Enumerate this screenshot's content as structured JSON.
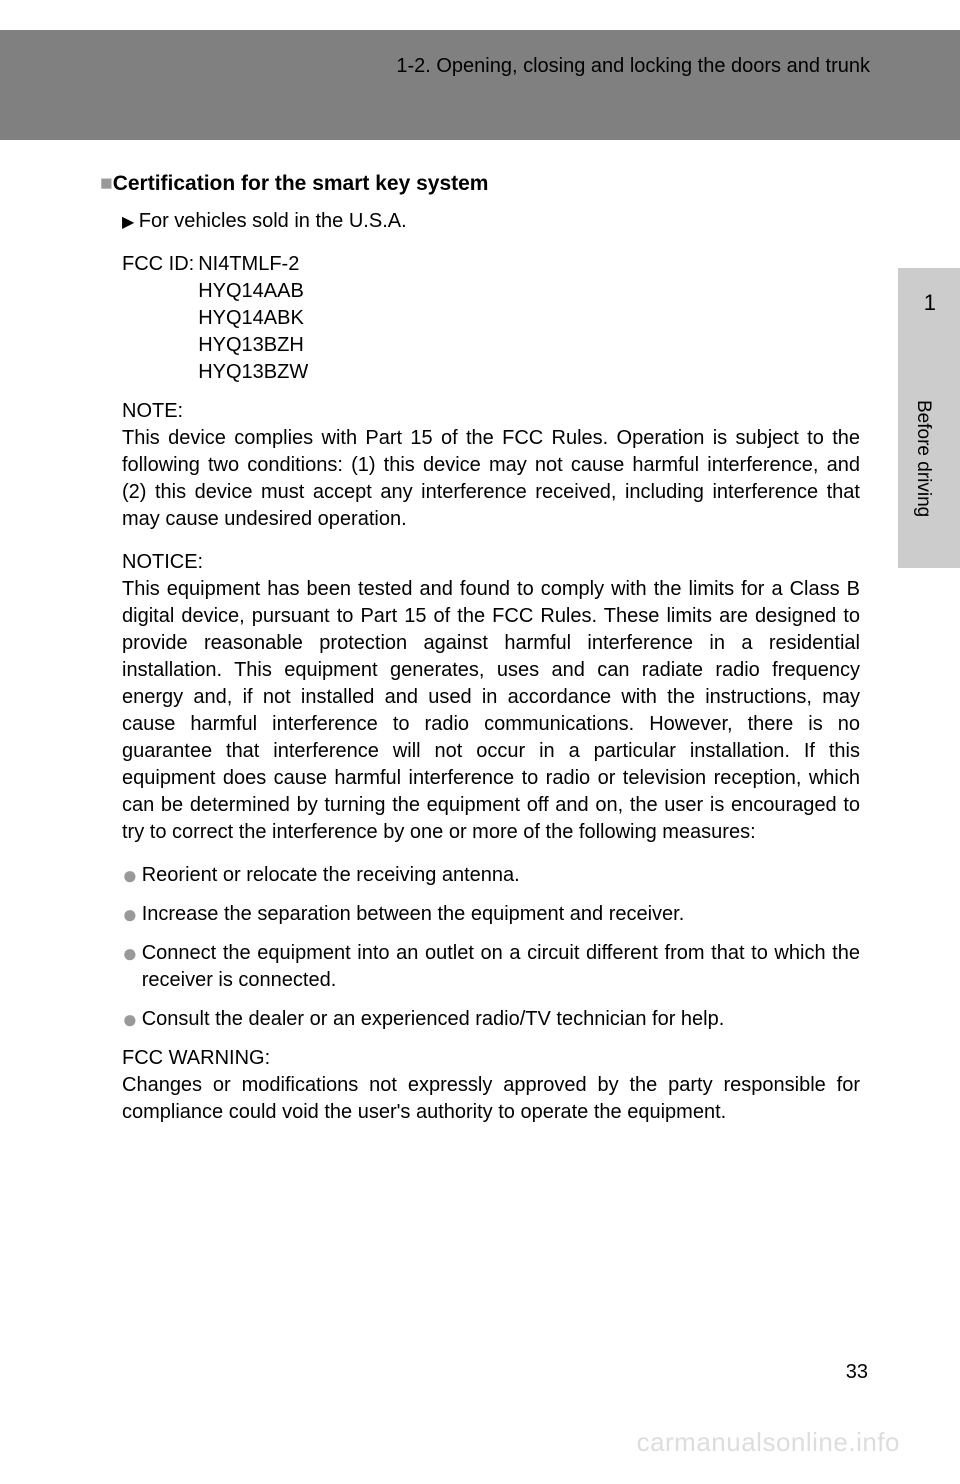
{
  "header": {
    "section": "1-2. Opening, closing and locking the doors and trunk"
  },
  "sidebar": {
    "chapter_num": "1",
    "chapter_label": "Before driving"
  },
  "title": "Certification for the smart key system",
  "subhead": "For vehicles sold in the U.S.A.",
  "fcc_label": "FCC ID:",
  "fcc_ids": [
    "NI4TMLF-2",
    "HYQ14AAB",
    "HYQ14ABK",
    "HYQ13BZH",
    "HYQ13BZW"
  ],
  "note_label": "NOTE:",
  "note_body": "This device complies with Part 15 of the FCC Rules. Operation is subject to the following two conditions: (1) this device may not cause harmful interference, and (2) this device must accept any interference received, including interference that may cause undesired operation.",
  "notice_label": "NOTICE:",
  "notice_body": "This equipment has been tested and found to comply with the limits for a Class B digital device, pursuant to Part 15 of the FCC Rules. These limits are designed to provide reasonable protection against harmful interference in a residential installation. This equipment generates, uses and can radiate radio frequency energy and, if not installed and used in accordance with the instructions, may cause harmful interference to radio communications. However, there is no guarantee that interference will not occur in a particular installation. If this equipment does cause harmful interference to radio or television reception, which can be determined by turning the equipment off and on, the user is encouraged to try to correct the interference by one or more of the following measures:",
  "bullets": [
    "Reorient or relocate the receiving antenna.",
    "Increase the separation between the equipment and receiver.",
    "Connect the equipment into an outlet on a circuit different from that to which the receiver is connected.",
    "Consult the dealer or an experienced radio/TV technician for help."
  ],
  "warn_label": "FCC WARNING:",
  "warn_body": "Changes or modifications not expressly approved by the party responsible for compliance could void the user's authority to operate the equipment.",
  "page_num": "33",
  "watermark": "carmanualsonline.info",
  "colors": {
    "header_band": "#808080",
    "side_tab": "#cccccc",
    "square": "#999999",
    "bullet": "#999999",
    "watermark": "#dddddd",
    "text": "#000000",
    "background": "#ffffff"
  },
  "typography": {
    "body_fontsize": 20,
    "title_fontsize": 21,
    "title_weight": "bold",
    "line_height": 1.35,
    "font_family": "Arial"
  }
}
